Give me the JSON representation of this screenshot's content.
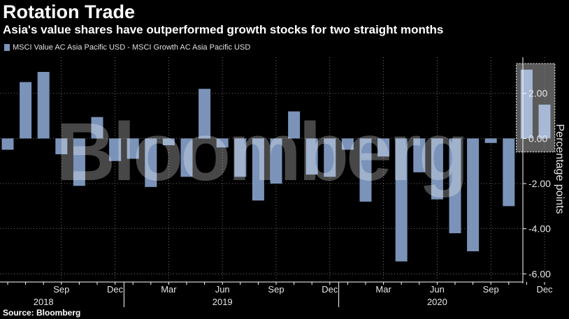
{
  "header": {
    "title": "Rotation Trade",
    "subtitle": "Asia's value shares have outperformed growth stocks for two straight months"
  },
  "legend": {
    "label": "MSCI Value AC Asia Pacific USD - MSCI Growth AC Asia Pacific USD",
    "color": "#7b93b9"
  },
  "source": "Source: Bloomberg",
  "watermark": "Bloomberg",
  "colors": {
    "bar": "#7b93b9",
    "highlight_bar": "#a8b9d6",
    "highlight_box": "#5a5a5a",
    "grid": "#8a8a8a",
    "axis_text": "#e6e6e6",
    "background": "#000000"
  },
  "chart_data": {
    "type": "bar",
    "title": "Rotation Trade",
    "ylabel": "Percentage points",
    "ylim": [
      -6.3,
      3.6
    ],
    "y_ticks": [
      2.0,
      0.0,
      -2.0,
      -4.0,
      -6.0
    ],
    "y_tick_labels": [
      "2.00",
      "0.00",
      "-2.00",
      "-4.00",
      "-6.00"
    ],
    "y_axis_position": "right",
    "grid": true,
    "categories": [
      "2018-06",
      "2018-07",
      "2018-08",
      "2018-09",
      "2018-10",
      "2018-11",
      "2018-12",
      "2019-01",
      "2019-02",
      "2019-03",
      "2019-04",
      "2019-05",
      "2019-06",
      "2019-07",
      "2019-08",
      "2019-09",
      "2019-10",
      "2019-11",
      "2019-12",
      "2020-01",
      "2020-02",
      "2020-03",
      "2020-04",
      "2020-05",
      "2020-06",
      "2020-07",
      "2020-08",
      "2020-09",
      "2020-10",
      "2020-11",
      "2020-12"
    ],
    "values": [
      -0.5,
      2.5,
      2.95,
      -0.7,
      -2.1,
      0.95,
      -1.0,
      -0.9,
      -2.15,
      -0.3,
      -1.7,
      2.2,
      -0.4,
      -1.7,
      -2.75,
      -2.0,
      1.2,
      -1.6,
      -1.7,
      -0.5,
      -2.8,
      -0.8,
      -5.45,
      -1.5,
      -2.7,
      -4.2,
      -5.0,
      -0.2,
      -3.0,
      3.05,
      1.5
    ],
    "highlight": {
      "from": "2020-11",
      "to": "2020-12"
    },
    "x_tick_labels": [
      {
        "at": "2018-09",
        "label": "Sep"
      },
      {
        "at": "2018-12",
        "label": "Dec"
      },
      {
        "at": "2019-03",
        "label": "Mar"
      },
      {
        "at": "2019-06",
        "label": "Jun"
      },
      {
        "at": "2019-09",
        "label": "Sep"
      },
      {
        "at": "2019-12",
        "label": "Dec"
      },
      {
        "at": "2020-03",
        "label": "Mar"
      },
      {
        "at": "2020-06",
        "label": "Jun"
      },
      {
        "at": "2020-09",
        "label": "Sep"
      },
      {
        "at": "2020-12",
        "label": "Dec"
      }
    ],
    "x_year_labels": [
      {
        "at": "2018-08",
        "label": "2018"
      },
      {
        "at": "2019-06",
        "label": "2019"
      },
      {
        "at": "2020-06",
        "label": "2020"
      }
    ]
  }
}
